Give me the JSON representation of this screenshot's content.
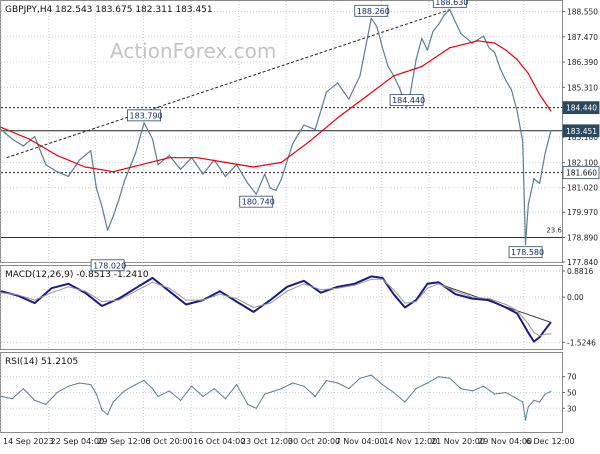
{
  "header": {
    "symbol_line": "GBPJPY,H4  182.543 183.675 182.311 183.451",
    "watermark": "ActionForex.com"
  },
  "colors": {
    "price": "#5b7f95",
    "ma": "#e8000b",
    "macd": "#1a1a8a",
    "signal": "#9a9a9a",
    "grid": "#c8d0d8",
    "axis_text": "#222222",
    "label_bg_dark": "#2b4a5f",
    "label_bg_light": "#ffffff",
    "label_border": "#2b4a5f"
  },
  "x_axis": {
    "tick_labels": [
      "14 Sep 2023",
      "22 Sep 04:00",
      "29 Sep 12:00",
      "6 Oct 20:00",
      "16 Oct 04:00",
      "23 Oct 12:00",
      "30 Oct 20:00",
      "7 Nov 04:00",
      "14 Nov 12:00",
      "21 Nov 20:00",
      "29 Nov 04:00",
      "6 Dec 12:00"
    ]
  },
  "chart_data": [
    {
      "type": "line",
      "name": "price",
      "title": "GBPJPY,H4",
      "ohlc_text": "182.543 183.675 182.311 183.451",
      "ylim": [
        177.84,
        189.0
      ],
      "y_ticks": [
        188.55,
        187.47,
        186.39,
        185.31,
        183.18,
        182.1,
        181.02,
        179.97,
        178.89,
        177.84
      ],
      "y_tick_labels": [
        "188.550",
        "187.470",
        "186.390",
        "185.310",
        "183.180",
        "182.100",
        "181.020",
        "179.970",
        "178.890",
        "177.840"
      ],
      "x_range": [
        0,
        100
      ],
      "x_ticks": [
        0,
        8.5,
        16.8,
        25.4,
        33.9,
        42.4,
        50.8,
        59.3,
        67.8,
        76.3,
        84.7,
        93.2
      ],
      "highlighted_levels": [
        {
          "value": 184.44,
          "label": "184.440",
          "style": "dark",
          "dashed": true
        },
        {
          "value": 183.451,
          "label": "183.451",
          "style": "dark",
          "dashed": false
        },
        {
          "value": 181.66,
          "label": "181.660",
          "style": "light",
          "dashed": true
        },
        {
          "value": 178.89,
          "label": "",
          "style": "none",
          "dashed": false
        }
      ],
      "annotations": [
        {
          "x": 19,
          "y": 178.02,
          "label": "178.020"
        },
        {
          "x": 25.5,
          "y": 183.79,
          "label": "183.790"
        },
        {
          "x": 45.5,
          "y": 180.74,
          "label": "180.740"
        },
        {
          "x": 72.3,
          "y": 184.44,
          "label": "184.440"
        },
        {
          "x": 66,
          "y": 188.26,
          "label": "188.260"
        },
        {
          "x": 80,
          "y": 188.63,
          "label": "188.630"
        },
        {
          "x": 93.5,
          "y": 178.58,
          "label": "178.580"
        }
      ],
      "fib_label": {
        "x": 97.2,
        "y": 179.1,
        "text": "23.6"
      },
      "trendline": {
        "x": [
          1,
          80
        ],
        "y": [
          182.3,
          188.63
        ]
      },
      "series": [
        {
          "name": "price",
          "x": [
            0,
            2,
            4,
            6,
            8,
            10,
            12,
            14,
            16,
            17,
            18,
            19,
            20,
            21,
            22,
            24,
            25.5,
            27,
            28,
            30,
            32,
            34,
            36,
            38,
            40,
            42,
            44,
            45.5,
            47,
            48,
            49,
            50,
            52,
            54,
            56,
            58,
            60,
            62,
            64,
            66,
            67,
            68,
            69,
            70,
            71,
            72.3,
            73,
            74,
            75,
            76,
            77,
            78,
            79,
            80,
            81,
            82,
            84,
            86,
            87,
            88,
            89,
            90,
            91,
            92,
            93,
            93.5,
            94,
            95,
            96,
            97,
            98
          ],
          "y": [
            183.5,
            183.1,
            182.8,
            183.2,
            182.0,
            181.7,
            181.5,
            182.2,
            182.6,
            181.0,
            180.2,
            179.2,
            179.8,
            180.5,
            181.3,
            182.5,
            183.79,
            183.1,
            182.0,
            182.4,
            181.8,
            182.3,
            181.6,
            182.2,
            181.5,
            182.0,
            181.2,
            180.74,
            181.6,
            181.0,
            180.9,
            181.4,
            182.9,
            183.7,
            183.5,
            185.1,
            185.5,
            184.8,
            185.8,
            188.26,
            187.9,
            187.0,
            186.2,
            185.8,
            185.3,
            184.44,
            185.1,
            186.5,
            187.4,
            186.9,
            187.7,
            188.0,
            188.4,
            188.63,
            188.1,
            187.6,
            187.2,
            187.5,
            187.0,
            186.8,
            186.1,
            185.6,
            185.2,
            184.3,
            183.0,
            178.58,
            180.3,
            181.4,
            181.2,
            182.5,
            183.451
          ]
        },
        {
          "name": "ma",
          "x": [
            0,
            5,
            10,
            15,
            20,
            25,
            30,
            35,
            40,
            45,
            50,
            55,
            60,
            65,
            70,
            75,
            80,
            85,
            88,
            90,
            92,
            94,
            96,
            98
          ],
          "y": [
            183.6,
            183.1,
            182.4,
            181.9,
            181.7,
            182.0,
            182.3,
            182.3,
            182.1,
            181.9,
            182.1,
            183.0,
            184.0,
            184.9,
            185.8,
            186.2,
            187.0,
            187.3,
            187.2,
            186.9,
            186.5,
            185.9,
            185.0,
            184.3
          ]
        }
      ]
    },
    {
      "type": "line",
      "name": "macd",
      "title": "MACD(12,26,9) -0.8513 -1.2410",
      "ylim": [
        -1.75,
        1.05
      ],
      "y_ticks": [
        0.8816,
        0.0,
        -1.5246
      ],
      "y_tick_labels": [
        "0.8816",
        "0.00",
        "-1.5246"
      ],
      "trendline": {
        "x": [
          78,
          98
        ],
        "y": [
          0.45,
          -0.85
        ]
      },
      "series": [
        {
          "name": "MACD",
          "x": [
            0,
            3,
            6,
            9,
            12,
            15,
            18,
            21,
            24,
            27,
            30,
            33,
            36,
            39,
            42,
            45,
            48,
            51,
            54,
            57,
            60,
            63,
            66,
            68,
            70,
            72,
            74,
            76,
            78,
            81,
            84,
            87,
            90,
            92,
            94,
            95,
            96,
            97,
            98
          ],
          "y": [
            0.2,
            0.05,
            -0.2,
            0.3,
            0.45,
            0.15,
            -0.3,
            -0.05,
            0.3,
            0.65,
            0.2,
            -0.25,
            -0.1,
            0.2,
            -0.15,
            -0.5,
            -0.1,
            0.35,
            0.55,
            0.15,
            0.35,
            0.45,
            0.7,
            0.65,
            0.1,
            -0.35,
            -0.1,
            0.45,
            0.5,
            0.1,
            -0.05,
            -0.1,
            -0.35,
            -0.55,
            -1.2,
            -1.5,
            -1.35,
            -1.1,
            -0.85
          ]
        },
        {
          "name": "Signal",
          "x": [
            0,
            3,
            6,
            9,
            12,
            15,
            18,
            21,
            24,
            27,
            30,
            33,
            36,
            39,
            42,
            45,
            48,
            51,
            54,
            57,
            60,
            63,
            66,
            68,
            70,
            72,
            74,
            76,
            78,
            81,
            84,
            87,
            90,
            92,
            94,
            95,
            96,
            97,
            98
          ],
          "y": [
            0.15,
            0.08,
            -0.1,
            0.15,
            0.35,
            0.2,
            -0.15,
            -0.1,
            0.2,
            0.5,
            0.3,
            -0.1,
            -0.1,
            0.1,
            -0.05,
            -0.35,
            -0.2,
            0.2,
            0.45,
            0.25,
            0.3,
            0.4,
            0.6,
            0.6,
            0.25,
            -0.2,
            -0.15,
            0.3,
            0.45,
            0.2,
            0.0,
            -0.05,
            -0.25,
            -0.45,
            -0.9,
            -1.2,
            -1.3,
            -1.25,
            -1.241
          ]
        }
      ]
    },
    {
      "type": "line",
      "name": "rsi",
      "title": "RSI(14) 51.2105",
      "ylim": [
        0,
        100
      ],
      "y_ticks": [
        70,
        50,
        30
      ],
      "y_tick_labels": [
        "70",
        "50",
        "30"
      ],
      "series": [
        {
          "name": "RSI",
          "x": [
            0,
            2,
            4,
            6,
            8,
            10,
            12,
            14,
            16,
            17,
            18,
            19,
            20,
            22,
            24,
            25.5,
            27,
            28,
            30,
            32,
            34,
            36,
            38,
            40,
            42,
            44,
            45.5,
            47,
            50,
            52,
            54,
            56,
            58,
            60,
            62,
            64,
            66,
            68,
            70,
            72,
            74,
            76,
            78,
            80,
            82,
            84,
            86,
            88,
            90,
            92,
            93,
            93.5,
            94,
            95,
            96,
            97,
            98
          ],
          "y": [
            45,
            42,
            55,
            40,
            35,
            50,
            58,
            62,
            60,
            48,
            28,
            22,
            38,
            52,
            60,
            65,
            55,
            45,
            52,
            40,
            58,
            45,
            55,
            42,
            60,
            35,
            30,
            48,
            55,
            62,
            58,
            45,
            65,
            62,
            55,
            68,
            72,
            60,
            50,
            38,
            55,
            62,
            70,
            68,
            55,
            52,
            58,
            48,
            50,
            42,
            38,
            15,
            32,
            40,
            38,
            48,
            51.2
          ]
        }
      ]
    }
  ]
}
